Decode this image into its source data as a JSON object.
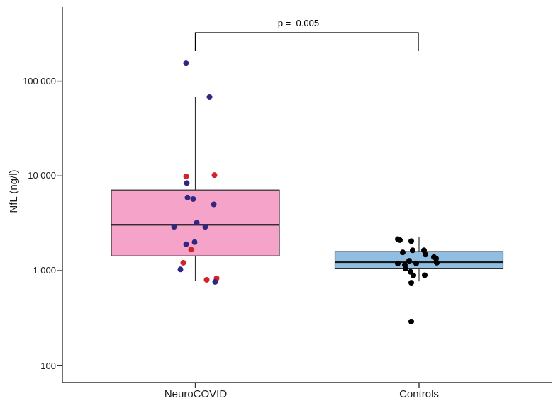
{
  "chart_data": {
    "type": "boxplot",
    "title": "",
    "xlabel": "",
    "ylabel": "NfL (ng/l)",
    "yscale": "log10",
    "ylim": [
      70,
      600000
    ],
    "grid": false,
    "yticks": [
      {
        "value": 100000,
        "label": "100 000"
      },
      {
        "value": 10000,
        "label": "10 000"
      },
      {
        "value": 1000,
        "label": "1 000"
      },
      {
        "value": 100,
        "label": "100"
      }
    ],
    "annotation": {
      "text": "p =  0.005",
      "compares": [
        "NeuroCOVID",
        "Controls"
      ]
    },
    "point_colors": {
      "navy": "#312783",
      "red": "#D2232A",
      "black": "#000000"
    },
    "axis_color": "#333333",
    "groups": [
      {
        "label": "NeuroCOVID",
        "box": {
          "q1": 1430,
          "median": 3050,
          "q3": 7100,
          "whisker_low": 780,
          "whisker_high": 68000,
          "fill": "#F5A3C8"
        },
        "points": [
          {
            "value": 155000,
            "dx": -13,
            "color": "navy"
          },
          {
            "value": 68000,
            "dx": 20,
            "color": "navy"
          },
          {
            "value": 10200,
            "dx": 27,
            "color": "red"
          },
          {
            "value": 9900,
            "dx": -13,
            "color": "red"
          },
          {
            "value": 8400,
            "dx": -12,
            "color": "navy"
          },
          {
            "value": 5900,
            "dx": -11,
            "color": "navy"
          },
          {
            "value": 5700,
            "dx": -3,
            "color": "navy"
          },
          {
            "value": 5000,
            "dx": 26,
            "color": "navy"
          },
          {
            "value": 3200,
            "dx": 2,
            "color": "navy"
          },
          {
            "value": 2900,
            "dx": -30,
            "color": "navy"
          },
          {
            "value": 2900,
            "dx": 14,
            "color": "navy"
          },
          {
            "value": 2000,
            "dx": -1,
            "color": "navy"
          },
          {
            "value": 1900,
            "dx": -13,
            "color": "navy"
          },
          {
            "value": 1670,
            "dx": -6,
            "color": "red"
          },
          {
            "value": 1210,
            "dx": -17,
            "color": "red"
          },
          {
            "value": 1030,
            "dx": -21,
            "color": "navy"
          },
          {
            "value": 830,
            "dx": 30,
            "color": "red"
          },
          {
            "value": 800,
            "dx": 16,
            "color": "red"
          },
          {
            "value": 760,
            "dx": 28,
            "color": "navy"
          }
        ]
      },
      {
        "label": "Controls",
        "box": {
          "q1": 1060,
          "median": 1230,
          "q3": 1590,
          "whisker_low": 770,
          "whisker_high": 2250,
          "fill": "#8FBEE2"
        },
        "points": [
          {
            "value": 2150,
            "dx": -30,
            "color": "black"
          },
          {
            "value": 2100,
            "dx": -27,
            "color": "black"
          },
          {
            "value": 2050,
            "dx": -11,
            "color": "black"
          },
          {
            "value": 1640,
            "dx": -9,
            "color": "black"
          },
          {
            "value": 1640,
            "dx": 7,
            "color": "black"
          },
          {
            "value": 1560,
            "dx": -23,
            "color": "black"
          },
          {
            "value": 1480,
            "dx": 9,
            "color": "black"
          },
          {
            "value": 1390,
            "dx": 21,
            "color": "black"
          },
          {
            "value": 1340,
            "dx": 24,
            "color": "black"
          },
          {
            "value": 1270,
            "dx": -14,
            "color": "black"
          },
          {
            "value": 1210,
            "dx": 25,
            "color": "black"
          },
          {
            "value": 1190,
            "dx": -30,
            "color": "black"
          },
          {
            "value": 1190,
            "dx": -4,
            "color": "black"
          },
          {
            "value": 1150,
            "dx": -20,
            "color": "black"
          },
          {
            "value": 1050,
            "dx": -19,
            "color": "black"
          },
          {
            "value": 970,
            "dx": -12,
            "color": "black"
          },
          {
            "value": 895,
            "dx": 8,
            "color": "black"
          },
          {
            "value": 890,
            "dx": -8,
            "color": "black"
          },
          {
            "value": 745,
            "dx": -11,
            "color": "black"
          },
          {
            "value": 290,
            "dx": -11,
            "color": "black"
          }
        ]
      }
    ]
  }
}
